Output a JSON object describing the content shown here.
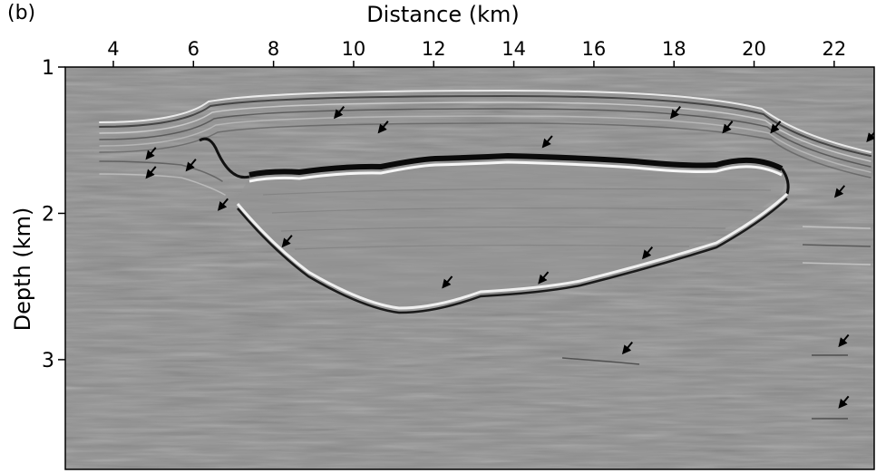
{
  "figure": {
    "panel_label": "(b)",
    "x_axis": {
      "title": "Distance (km)",
      "range": [
        2.8,
        23.0
      ],
      "ticks": [
        4,
        6,
        8,
        10,
        12,
        14,
        16,
        18,
        20,
        22
      ]
    },
    "y_axis": {
      "title": "Depth (km)",
      "range": [
        1.0,
        3.75
      ],
      "inverted": true,
      "ticks": [
        1,
        2,
        3
      ]
    },
    "image": "grayscale seismic depth section with a bright salt-body top reflector near 1.7 km depth between ~7 and ~21 km distance and a base reflector near 2.5 km",
    "background_color": "#8e8e8e",
    "arrow_color": "#000000",
    "arrow_icon": "down-left-arrow-icon",
    "arrows": [
      {
        "x": 4.9,
        "y": 1.6
      },
      {
        "x": 4.9,
        "y": 1.73
      },
      {
        "x": 5.9,
        "y": 1.68
      },
      {
        "x": 6.7,
        "y": 1.95
      },
      {
        "x": 8.3,
        "y": 2.2
      },
      {
        "x": 9.6,
        "y": 1.32
      },
      {
        "x": 10.7,
        "y": 1.42
      },
      {
        "x": 12.3,
        "y": 2.48
      },
      {
        "x": 14.8,
        "y": 1.52
      },
      {
        "x": 14.7,
        "y": 2.45
      },
      {
        "x": 16.8,
        "y": 2.93
      },
      {
        "x": 17.3,
        "y": 2.28
      },
      {
        "x": 18.0,
        "y": 1.32
      },
      {
        "x": 19.3,
        "y": 1.42
      },
      {
        "x": 20.5,
        "y": 1.42
      },
      {
        "x": 22.1,
        "y": 1.86
      },
      {
        "x": 22.2,
        "y": 2.88
      },
      {
        "x": 22.2,
        "y": 3.3
      },
      {
        "x": 22.9,
        "y": 1.48
      }
    ]
  }
}
